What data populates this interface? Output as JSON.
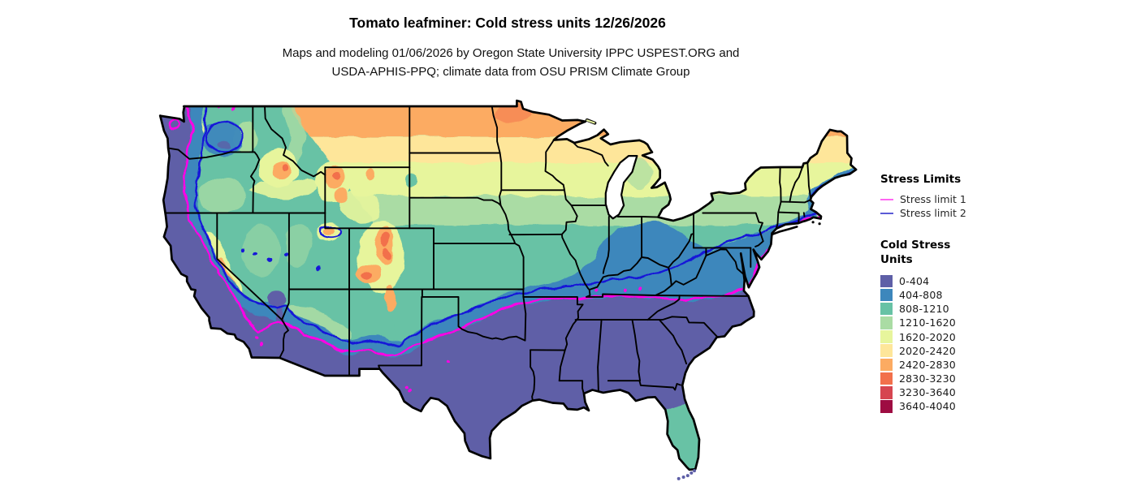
{
  "title": "Tomato leafminer: Cold stress units 12/26/2026",
  "subtitle": {
    "line1": "Maps and modeling 01/06/2026 by Oregon State University IPPC USPEST.ORG and",
    "line2": "USDA-APHIS-PPQ; climate data from OSU PRISM Climate Group"
  },
  "legend": {
    "stress_limits": {
      "heading": "Stress Limits",
      "items": [
        {
          "label": "Stress limit 1",
          "legend_color": "#ff66f2",
          "map_color": "#ff00e6"
        },
        {
          "label": "Stress limit 2",
          "legend_color": "#5a5ad6",
          "map_color": "#1414d8"
        }
      ]
    },
    "cold_stress_units": {
      "heading_line1": "Cold Stress",
      "heading_line2": "Units",
      "bins": [
        {
          "label": "0-404",
          "color": "#5e5fa7"
        },
        {
          "label": "404-808",
          "color": "#3d87bc"
        },
        {
          "label": "808-1210",
          "color": "#67c2a5"
        },
        {
          "label": "1210-1620",
          "color": "#aadca4"
        },
        {
          "label": "1620-2020",
          "color": "#e7f59c"
        },
        {
          "label": "2020-2420",
          "color": "#fee69a"
        },
        {
          "label": "2420-2830",
          "color": "#fcab62"
        },
        {
          "label": "2830-3230",
          "color": "#f2704b"
        },
        {
          "label": "3230-3640",
          "color": "#d64550"
        },
        {
          "label": "3640-4040",
          "color": "#9e0c42"
        }
      ]
    }
  },
  "chart_data": {
    "type": "heatmap",
    "title": "Tomato leafminer: Cold stress units 12/26/2026",
    "subtitle": "Maps and modeling 01/06/2026 by Oregon State University IPPC USPEST.ORG and USDA-APHIS-PPQ; climate data from OSU PRISM Climate Group",
    "region": "Contiguous United States",
    "variable": "Accumulated cold stress units through 12/26/2026",
    "legend_position": "right",
    "value_range": [
      0,
      4040
    ],
    "bins": [
      {
        "label": "0-404",
        "min": 0,
        "max": 404,
        "color": "#5e5fa7"
      },
      {
        "label": "404-808",
        "min": 404,
        "max": 808,
        "color": "#3d87bc"
      },
      {
        "label": "808-1210",
        "min": 808,
        "max": 1210,
        "color": "#67c2a5"
      },
      {
        "label": "1210-1620",
        "min": 1210,
        "max": 1620,
        "color": "#aadca4"
      },
      {
        "label": "1620-2020",
        "min": 1620,
        "max": 2020,
        "color": "#e7f59c"
      },
      {
        "label": "2020-2420",
        "min": 2020,
        "max": 2420,
        "color": "#fee69a"
      },
      {
        "label": "2420-2830",
        "min": 2420,
        "max": 2830,
        "color": "#fcab62"
      },
      {
        "label": "2830-3230",
        "min": 2830,
        "max": 3230,
        "color": "#f2704b"
      },
      {
        "label": "3230-3640",
        "min": 3230,
        "max": 3640,
        "color": "#d64550"
      },
      {
        "label": "3640-4040",
        "min": 3640,
        "max": 4040,
        "color": "#9e0c42"
      }
    ],
    "contour_lines": [
      {
        "name": "Stress limit 1",
        "color": "#ff00e6",
        "description": "Magenta contour running along the Pacific coast ranges, across the Southwest, southern Plains (~lat 34-35), along the KY/TN border (~36.5) and up the Atlantic coast to Cape Cod"
      },
      {
        "name": "Stress limit 2",
        "color": "#1414d8",
        "description": "Blue contour slightly north/uphill of limit 1: Cascades/Sierra crest, Mogollon Rim, ~lat 35-36 across the Plains, Ohio Valley (~37.5-38), up through the Mid-Atlantic to southern New England and the Maine coast"
      }
    ],
    "spatial_pattern": "Lowest cold stress (purple, 0-404) across the entire southern US, Pacific coastal strip, California valleys and low deserts; values increase northward through blue and teal in the mid-latitudes to yellow and orange (2420-3230) in northern Minnesota/North Dakota; orange-red pockets (2830-3640) over the Colorado Rockies, Yellowstone/Wind River, central Idaho, Uintas and the Sierra Nevada crest."
  }
}
